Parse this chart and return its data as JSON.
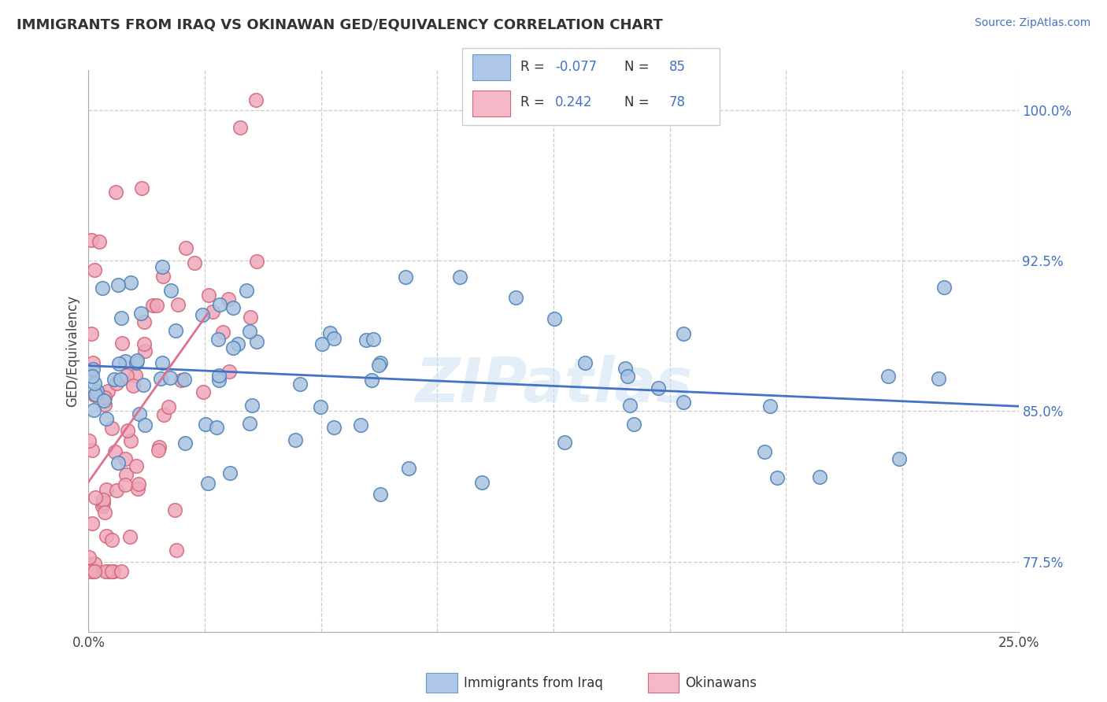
{
  "title": "IMMIGRANTS FROM IRAQ VS OKINAWAN GED/EQUIVALENCY CORRELATION CHART",
  "source": "Source: ZipAtlas.com",
  "ylabel": "GED/Equivalency",
  "legend_label_blue": "Immigrants from Iraq",
  "legend_label_pink": "Okinawans",
  "blue_dot_color": "#a8c4e0",
  "pink_dot_color": "#f0a8bc",
  "blue_line_color": "#4472c4",
  "pink_line_color": "#e07090",
  "watermark": "ZIPatlas",
  "x_min": 0.0,
  "x_max": 25.0,
  "y_min": 74.0,
  "y_max": 102.0,
  "y_ticks": [
    77.5,
    85.0,
    92.5,
    100.0
  ],
  "legend_R_blue": "R = -0.077",
  "legend_N_blue": "N = 85",
  "legend_R_pink": "R =  0.242",
  "legend_N_pink": "N = 78"
}
